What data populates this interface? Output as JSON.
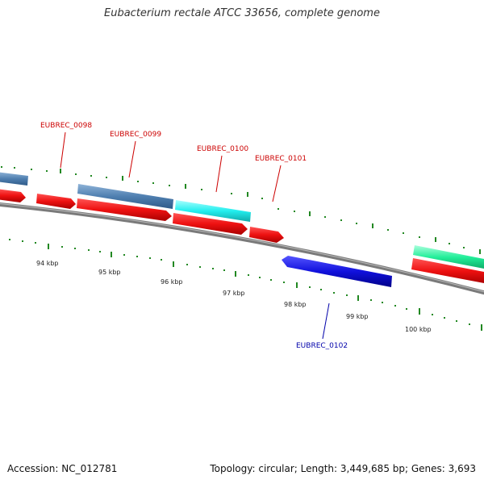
{
  "title": "Eubacterium rectale ATCC 33656, complete genome",
  "footer": {
    "accession": "Accession: NC_012781",
    "summary": "Topology: circular; Length: 3,449,685 bp; Genes: 3,693"
  },
  "scale_labels": [
    "94 kbp",
    "95 kbp",
    "96 kbp",
    "97 kbp",
    "98 kbp",
    "99 kbp",
    "100 kbp"
  ],
  "gene_labels": {
    "g0098": "EUBREC_0098",
    "g0099": "EUBREC_0099",
    "g0100": "EUBREC_0100",
    "g0101": "EUBREC_0101",
    "g0102": "EUBREC_0102"
  },
  "colors": {
    "forward_cds": "#ee1111",
    "forward_label": "#cc0000",
    "reverse_cds": "#1111dd",
    "reverse_label": "#0000aa",
    "steelblue_feature": "#4f7fb0",
    "cyan_feature": "#22eeee",
    "green_feature": "#22ee99",
    "backbone": "#7a7a7a",
    "ticks": "#228822"
  }
}
